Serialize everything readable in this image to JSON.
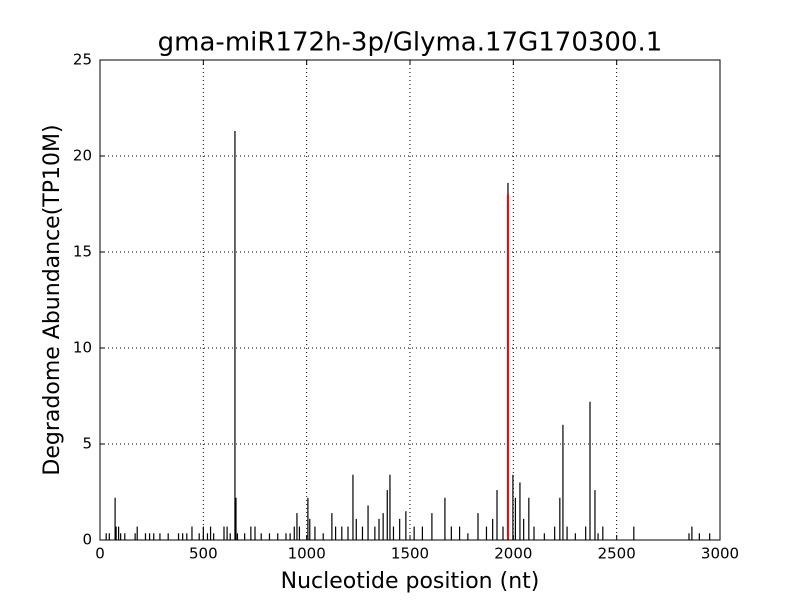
{
  "chart_data": {
    "type": "vlines",
    "title": "gma-miR172h-3p/Glyma.17G170300.1",
    "x_label": "Nucleotide position (nt)",
    "y_label": "Degradome Abundance(TP10M)",
    "xlim": [
      0,
      3000
    ],
    "xticks": [
      0,
      500,
      1000,
      1500,
      2000,
      2500,
      3000
    ],
    "ylim": [
      0,
      25
    ],
    "yticks": [
      0,
      5,
      10,
      15,
      20,
      25
    ],
    "grid": true,
    "series": [
      {
        "color": "#000000",
        "x": [
          30,
          45,
          73,
          78,
          90,
          100,
          120,
          170,
          180,
          220,
          240,
          260,
          290,
          330,
          380,
          400,
          420,
          445,
          480,
          500,
          520,
          535,
          550,
          600,
          615,
          630,
          653,
          658,
          665,
          700,
          730,
          750,
          780,
          820,
          860,
          900,
          920,
          940,
          953,
          965,
          1006,
          1015,
          1040,
          1080,
          1122,
          1140,
          1170,
          1200,
          1224,
          1240,
          1270,
          1297,
          1330,
          1350,
          1370,
          1390,
          1403,
          1420,
          1450,
          1480,
          1520,
          1560,
          1606,
          1669,
          1700,
          1740,
          1780,
          1829,
          1870,
          1900,
          1921,
          1950,
          1974,
          1998,
          2010,
          2032,
          2050,
          2075,
          2100,
          2150,
          2200,
          2225,
          2240,
          2260,
          2300,
          2350,
          2371,
          2395,
          2410,
          2433,
          2583,
          2850,
          2864,
          2900,
          2950
        ],
        "values": [
          0.35,
          0.35,
          2.2,
          0.7,
          0.7,
          0.35,
          0.35,
          0.35,
          0.7,
          0.35,
          0.35,
          0.35,
          0.35,
          0.35,
          0.35,
          0.35,
          0.35,
          0.7,
          0.35,
          0.7,
          0.35,
          0.7,
          0.35,
          0.7,
          0.7,
          0.35,
          21.3,
          2.2,
          0.35,
          0.35,
          0.7,
          0.7,
          0.35,
          0.35,
          0.35,
          0.35,
          0.35,
          0.7,
          1.4,
          0.7,
          2.2,
          1.1,
          0.7,
          0.35,
          1.4,
          0.7,
          0.7,
          0.7,
          3.4,
          1.1,
          0.7,
          1.8,
          0.7,
          1.1,
          1.4,
          2.6,
          3.4,
          0.7,
          1.1,
          1.5,
          0.7,
          0.7,
          1.4,
          2.2,
          0.7,
          0.7,
          0.35,
          1.4,
          0.7,
          1.1,
          2.6,
          0.7,
          18.6,
          3.4,
          2.2,
          3.0,
          1.1,
          2.2,
          0.7,
          0.35,
          0.7,
          2.2,
          6.0,
          0.7,
          0.35,
          0.7,
          7.2,
          2.6,
          0.35,
          0.7,
          0.7,
          0.35,
          0.7,
          0.35,
          0.35
        ]
      },
      {
        "color": "#ff0000",
        "x": [
          1974
        ],
        "values": [
          18
        ]
      }
    ]
  }
}
